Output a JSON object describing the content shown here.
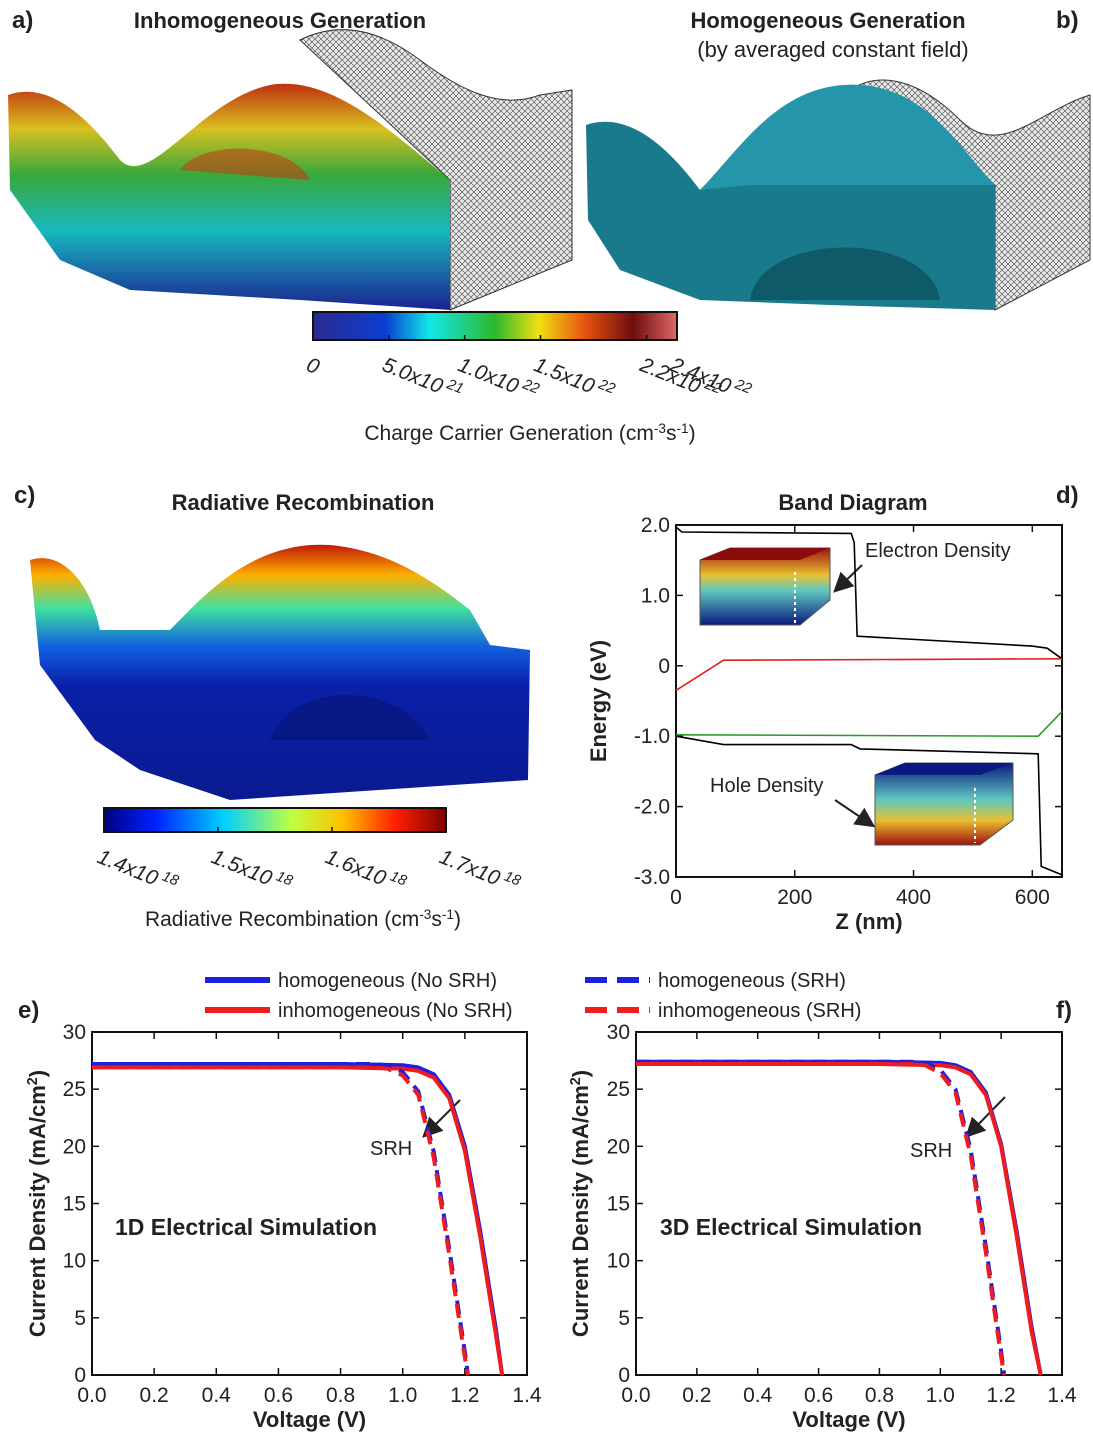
{
  "chart_data": [
    {
      "type": "surface",
      "label": "a)",
      "title": "Inhomogeneous Generation",
      "clim": [
        0,
        2.4e+22
      ],
      "cticks": [
        0,
        {
          "value": 5e+21,
          "label": "5.0x10",
          "power": "21"
        },
        {
          "value": 1e+22,
          "label": "1.0x10",
          "power": "22"
        },
        {
          "value": 1.5e+22,
          "label": "1.5x10",
          "power": "22"
        },
        {
          "value": 2.2e+22,
          "label": "2.2x10",
          "power": "22"
        },
        {
          "value": 2.4e+22,
          "label": "2.4x10",
          "power": "22"
        }
      ],
      "colorbar_label": [
        "Charge Carrier Generation (cm",
        "-3",
        "s",
        "-1",
        ")"
      ]
    },
    {
      "type": "surface",
      "label": "b)",
      "title": "Homogeneous Generation",
      "subtitle": "(by averaged constant field)"
    },
    {
      "type": "surface",
      "label": "c)",
      "title": "Radiative Recombination",
      "clim": [
        1.4e+18,
        1.7e+18
      ],
      "cticks": [
        {
          "value": 1.4e+18,
          "label": "1.4x10",
          "power": "18"
        },
        {
          "value": 1.5e+18,
          "label": "1.5x10",
          "power": "18"
        },
        {
          "value": 1.6e+18,
          "label": "1.6x10",
          "power": "18"
        },
        {
          "value": 1.7e+18,
          "label": "1.7x10",
          "power": "18"
        }
      ],
      "colorbar_label": [
        "Radiative Recombination (cm",
        "-3",
        "s",
        "-1",
        ")"
      ]
    },
    {
      "type": "line",
      "label": "d)",
      "title": "Band Diagram",
      "xlabel": "Z (nm)",
      "ylabel": [
        "Energy (eV)"
      ],
      "xlim": [
        0,
        650
      ],
      "xticks": [
        0,
        200,
        400,
        600
      ],
      "ylim": [
        -3,
        2
      ],
      "yticks": [
        {
          "value": -3,
          "label": "-3.0"
        },
        {
          "value": -2,
          "label": "-2.0"
        },
        {
          "value": -1,
          "label": "-1.0"
        },
        0,
        {
          "value": 1,
          "label": "1.0"
        },
        {
          "value": 2,
          "label": "2.0"
        }
      ],
      "annotations": [
        "Electron Density",
        "Hole Density"
      ],
      "series": [
        {
          "color": "#000000",
          "x": [
            0,
            10,
            295,
            300,
            305,
            600,
            625,
            650
          ],
          "values": [
            1.97,
            1.9,
            1.88,
            1.75,
            0.42,
            0.28,
            0.25,
            0.1
          ]
        },
        {
          "color": "#e02020",
          "x": [
            0,
            80,
            650
          ],
          "values": [
            -0.35,
            0.08,
            0.1
          ]
        },
        {
          "color": "#2a9a2a",
          "x": [
            0,
            610,
            650
          ],
          "values": [
            -0.98,
            -1.0,
            -0.65
          ]
        },
        {
          "color": "#000000",
          "x": [
            0,
            80,
            295,
            310,
            610,
            615,
            650
          ],
          "values": [
            -1.0,
            -1.12,
            -1.12,
            -1.18,
            -1.25,
            -2.85,
            -2.97
          ]
        }
      ]
    },
    {
      "type": "line",
      "label": "e)",
      "xlabel": "Voltage (V)",
      "ylabel": [
        "Current Density (mA/cm",
        "2",
        ")"
      ],
      "xlim": [
        0,
        1.4
      ],
      "xticks": [
        {
          "value": 0,
          "label": "0.0"
        },
        0.2,
        0.4,
        0.6,
        0.8,
        {
          "value": 1,
          "label": "1.0"
        },
        1.2,
        1.4
      ],
      "ylim": [
        0,
        30
      ],
      "yticks": [
        0,
        5,
        10,
        15,
        20,
        25,
        30
      ],
      "annotations": [
        "SRH",
        "1D Electrical Simulation"
      ],
      "series": [
        {
          "name": "homogeneous (No SRH)",
          "color": "#1f1fe0",
          "dashed": false,
          "x": [
            0,
            0.2,
            0.4,
            0.6,
            0.8,
            1.0,
            1.05,
            1.1,
            1.15,
            1.2,
            1.25,
            1.3,
            1.32
          ],
          "values": [
            27.2,
            27.2,
            27.2,
            27.2,
            27.2,
            27.1,
            26.9,
            26.3,
            24.5,
            20,
            12.5,
            4,
            0
          ]
        },
        {
          "name": "inhomogeneous (No SRH)",
          "color": "#ee1c1c",
          "dashed": false,
          "x": [
            0,
            0.2,
            0.4,
            0.6,
            0.8,
            1.0,
            1.05,
            1.1,
            1.15,
            1.2,
            1.25,
            1.3,
            1.32
          ],
          "values": [
            26.9,
            26.9,
            26.9,
            26.9,
            26.9,
            26.8,
            26.6,
            26,
            24.2,
            19.6,
            12,
            3.5,
            0
          ]
        },
        {
          "name": "homogeneous (SRH)",
          "color": "#1f1fe0",
          "dashed": true,
          "x": [
            0,
            0.2,
            0.4,
            0.6,
            0.8,
            0.9,
            0.95,
            1.0,
            1.05,
            1.1,
            1.15,
            1.2,
            1.21
          ],
          "values": [
            27.2,
            27.2,
            27.2,
            27.2,
            27.2,
            27.2,
            27.1,
            26.5,
            24.8,
            19.5,
            11,
            2,
            0
          ]
        },
        {
          "name": "inhomogeneous (SRH)",
          "color": "#ee1c1c",
          "dashed": true,
          "x": [
            0,
            0.2,
            0.4,
            0.6,
            0.8,
            0.9,
            0.95,
            1.0,
            1.05,
            1.1,
            1.15,
            1.2,
            1.21
          ],
          "values": [
            26.9,
            26.9,
            26.9,
            26.9,
            26.9,
            26.9,
            26.8,
            26.2,
            24.5,
            19,
            10.5,
            1.5,
            0
          ]
        }
      ]
    },
    {
      "type": "line",
      "label": "f)",
      "xlabel": "Voltage (V)",
      "ylabel": [
        "Current Density (mA/cm",
        "2",
        ")"
      ],
      "xlim": [
        0,
        1.4
      ],
      "xticks": [
        {
          "value": 0,
          "label": "0.0"
        },
        0.2,
        0.4,
        0.6,
        0.8,
        {
          "value": 1,
          "label": "1.0"
        },
        1.2,
        1.4
      ],
      "ylim": [
        0,
        30
      ],
      "yticks": [
        0,
        5,
        10,
        15,
        20,
        25,
        30
      ],
      "annotations": [
        "SRH",
        "3D Electrical Simulation"
      ],
      "series": [
        {
          "color": "#1f1fe0",
          "dashed": false,
          "x": [
            0,
            0.2,
            0.4,
            0.6,
            0.8,
            1.0,
            1.05,
            1.1,
            1.15,
            1.2,
            1.25,
            1.3,
            1.33
          ],
          "values": [
            27.4,
            27.4,
            27.4,
            27.4,
            27.4,
            27.3,
            27.1,
            26.5,
            24.7,
            20.2,
            12.7,
            4.2,
            0
          ]
        },
        {
          "color": "#ee1c1c",
          "dashed": false,
          "x": [
            0,
            0.2,
            0.4,
            0.6,
            0.8,
            1.0,
            1.05,
            1.1,
            1.15,
            1.2,
            1.25,
            1.3,
            1.33
          ],
          "values": [
            27.2,
            27.2,
            27.2,
            27.2,
            27.2,
            27.1,
            26.9,
            26.3,
            24.5,
            20,
            12.3,
            3.8,
            0
          ]
        },
        {
          "color": "#1f1fe0",
          "dashed": true,
          "x": [
            0,
            0.2,
            0.4,
            0.6,
            0.8,
            0.9,
            0.95,
            1.0,
            1.05,
            1.1,
            1.15,
            1.2,
            1.21
          ],
          "values": [
            27.4,
            27.4,
            27.4,
            27.4,
            27.4,
            27.4,
            27.3,
            26.7,
            25,
            19.7,
            11.2,
            2.1,
            0
          ]
        },
        {
          "color": "#ee1c1c",
          "dashed": true,
          "x": [
            0,
            0.2,
            0.4,
            0.6,
            0.8,
            0.9,
            0.95,
            1.0,
            1.05,
            1.1,
            1.15,
            1.2,
            1.21
          ],
          "values": [
            27.2,
            27.2,
            27.2,
            27.2,
            27.2,
            27.2,
            27.1,
            26.4,
            24.7,
            19.2,
            10.7,
            1.6,
            0
          ]
        }
      ]
    }
  ]
}
